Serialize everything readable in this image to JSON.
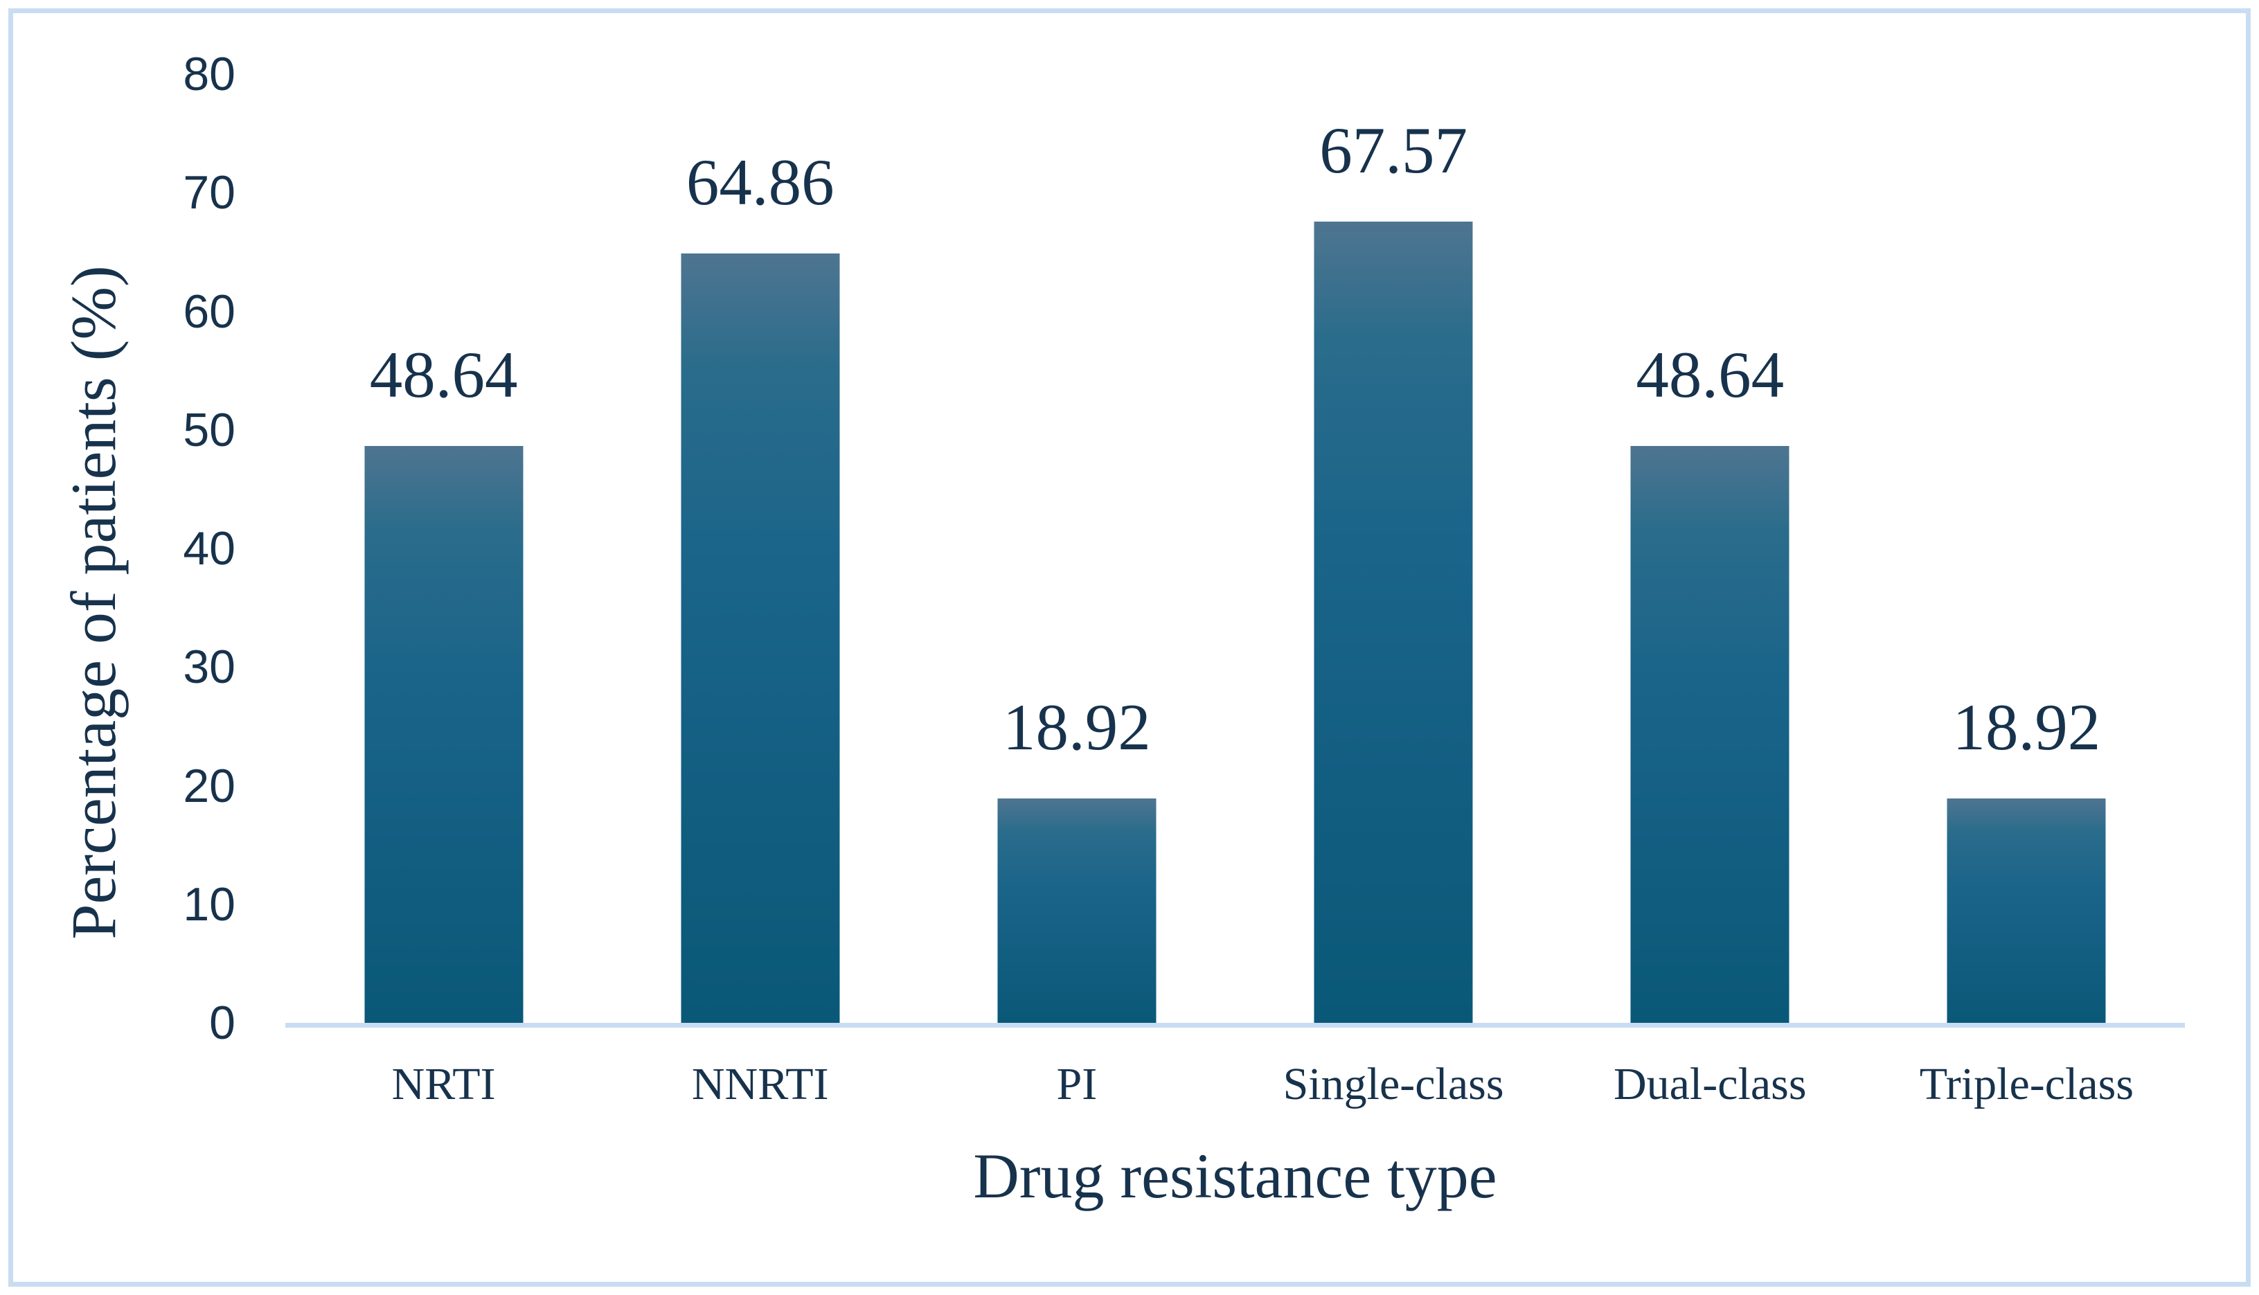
{
  "chart_data": {
    "type": "bar",
    "title": "",
    "xlabel": "Drug resistance type",
    "ylabel": "Percentage of patients (%)",
    "categories": [
      "NRTI",
      "NNRTI",
      "PI",
      "Single-class",
      "Dual-class",
      "Triple-class"
    ],
    "values": [
      48.64,
      64.86,
      18.92,
      67.57,
      48.64,
      18.92
    ],
    "data_labels": [
      "48.64",
      "64.86",
      "18.92",
      "67.57",
      "48.64",
      "18.92"
    ],
    "ylim": [
      0,
      80
    ],
    "y_ticks": [
      "0",
      "10",
      "20",
      "30",
      "40",
      "50",
      "60",
      "70",
      "80"
    ],
    "grid": false,
    "legend": false,
    "colors": {
      "bar_gradient_top": "#4e7591",
      "bar_gradient_mid": "#1a648a",
      "bar_gradient_bottom": "#0a5878",
      "text": "#17324c",
      "axis_line": "#c9dcf2",
      "border": "#c9dcf2",
      "background": "#ffffff"
    }
  }
}
